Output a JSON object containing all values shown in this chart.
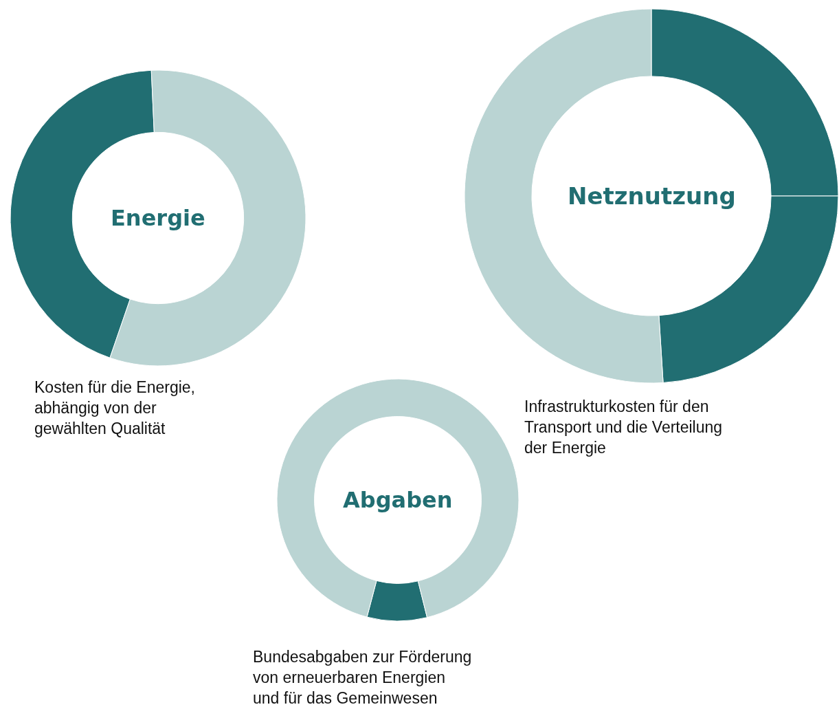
{
  "chart_data": [
    {
      "type": "donut",
      "title": "Energie",
      "categories": [
        null,
        null
      ],
      "values": [
        44,
        56
      ],
      "colors": [
        "#216e72",
        "#bad4d3"
      ],
      "annotations": [
        "Kosten für die Energie,\nabhängig von der\ngewählten Qualität"
      ]
    },
    {
      "type": "donut",
      "title": "Netznutzung",
      "categories": [
        null,
        null,
        null
      ],
      "values": [
        25,
        24,
        51
      ],
      "colors": [
        "#216e72",
        "#216e72",
        "#bad4d3"
      ],
      "annotations": [
        "Infrastrukturkosten für den\nTransport und die Verteilung\nder Energie"
      ]
    },
    {
      "type": "donut",
      "title": "Abgaben",
      "categories": [
        null,
        null
      ],
      "values": [
        8,
        92
      ],
      "colors": [
        "#216e72",
        "#bad4d3"
      ],
      "annotations": [
        "Bundesabgaben zur Förderung\nvon erneuerbaren Energien\nund für das Gemeinwesen"
      ]
    }
  ]
}
